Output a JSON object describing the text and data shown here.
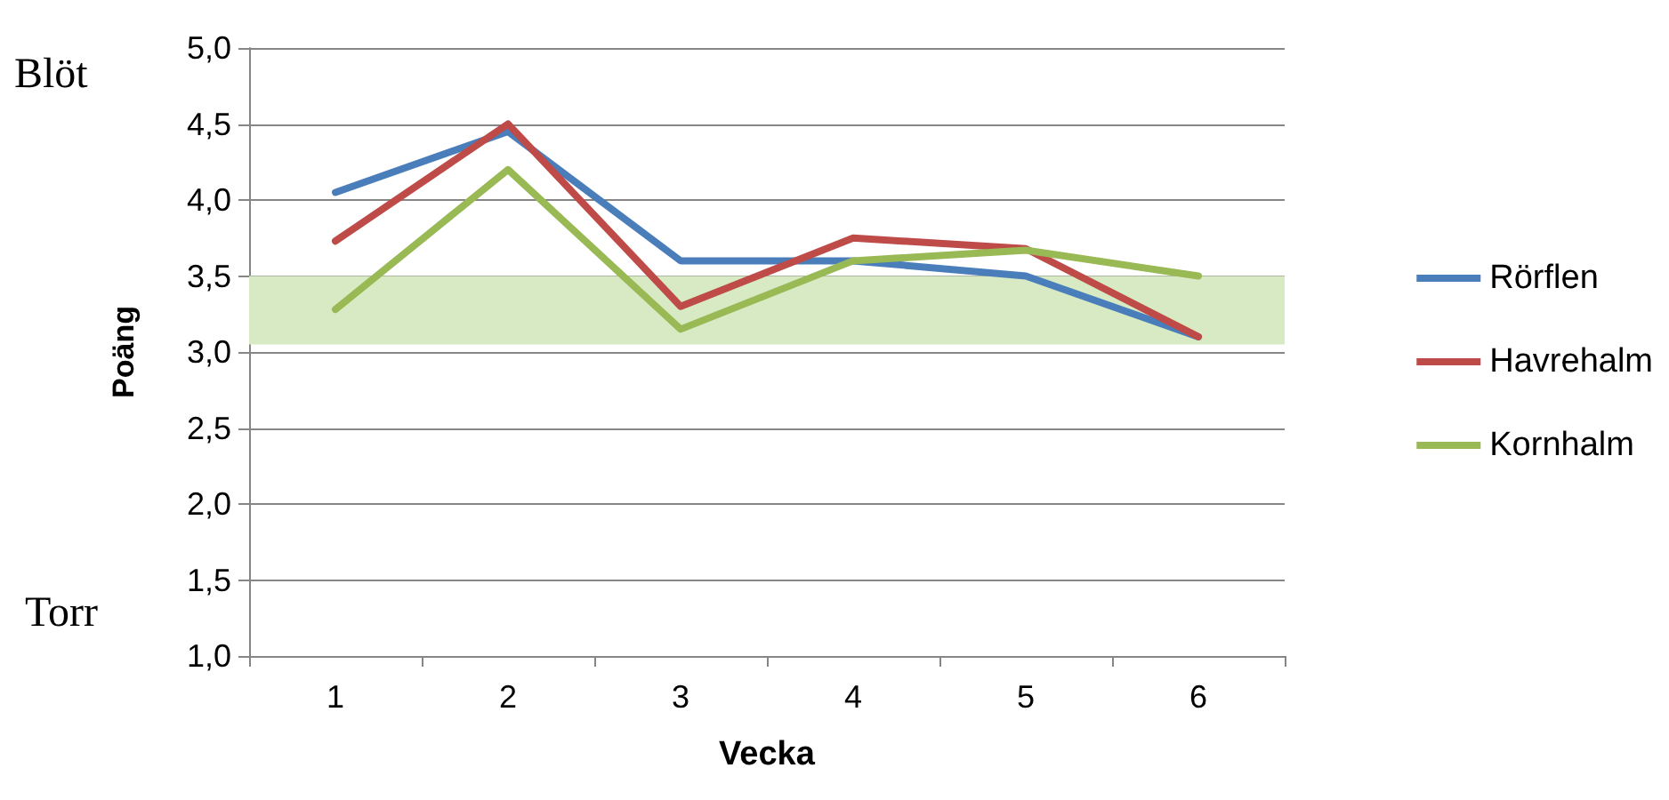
{
  "chart_data": {
    "type": "line",
    "xlabel": "Vecka",
    "ylabel": "Poäng",
    "categories": [
      "1",
      "2",
      "3",
      "4",
      "5",
      "6"
    ],
    "series": [
      {
        "name": "Rörflen",
        "color": "#4a7ebb",
        "values": [
          4.05,
          4.45,
          3.6,
          3.6,
          3.5,
          3.1
        ]
      },
      {
        "name": "Havrehalm",
        "color": "#be4b48",
        "values": [
          3.73,
          4.5,
          3.3,
          3.75,
          3.68,
          3.1
        ]
      },
      {
        "name": "Kornhalm",
        "color": "#98b954",
        "values": [
          3.28,
          4.2,
          3.15,
          3.6,
          3.67,
          3.5
        ]
      }
    ],
    "ylim": [
      1,
      5
    ],
    "yticks": [
      {
        "value": 1,
        "label": "1,0"
      },
      {
        "value": 1.5,
        "label": "1,5"
      },
      {
        "value": 2,
        "label": "2,0"
      },
      {
        "value": 2.5,
        "label": "2,5"
      },
      {
        "value": 3,
        "label": "3,0"
      },
      {
        "value": 3.5,
        "label": "3,5"
      },
      {
        "value": 4,
        "label": "4,0"
      },
      {
        "value": 4.5,
        "label": "4,5"
      },
      {
        "value": 5,
        "label": "5,0"
      }
    ],
    "bands": [
      {
        "axis": "y",
        "from": 3.05,
        "to": 3.5,
        "color": "#d7eac3"
      }
    ],
    "annotations": [
      "Blöt",
      "Torr"
    ],
    "grid": "y",
    "legend": "right",
    "marker": "none",
    "line_style": "solid"
  }
}
